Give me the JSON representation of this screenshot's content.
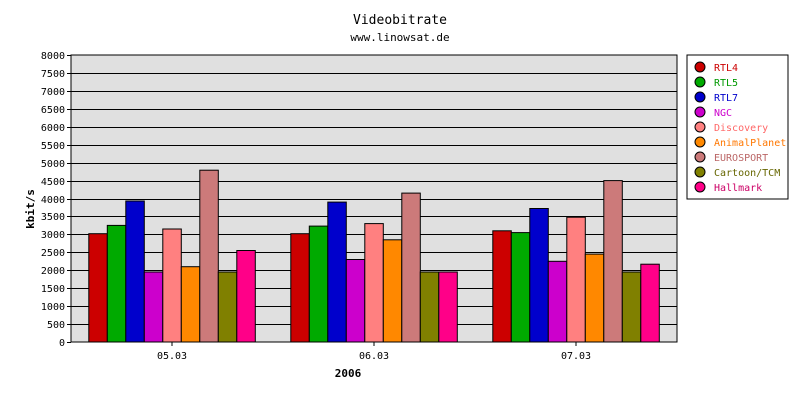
{
  "chart_data": {
    "type": "bar",
    "title": "Videobitrate",
    "subtitle": "www.linowsat.de",
    "xlabel": "2006",
    "ylabel": "kbit/s",
    "ylim": [
      0,
      8000
    ],
    "yticks": [
      0,
      500,
      1000,
      1500,
      2000,
      2500,
      3000,
      3500,
      4000,
      4500,
      5000,
      5500,
      6000,
      6500,
      7000,
      7500,
      8000
    ],
    "grid": true,
    "legend_position": "right",
    "categories": [
      "05.03",
      "06.03",
      "07.03"
    ],
    "series": [
      {
        "name": "RTL4",
        "color": "#cc0000",
        "text_color": "#cc0000",
        "values": [
          3020,
          3020,
          3100
        ]
      },
      {
        "name": "RTL5",
        "color": "#00aa00",
        "text_color": "#009900",
        "values": [
          3250,
          3230,
          3050
        ]
      },
      {
        "name": "RTL7",
        "color": "#0000cc",
        "text_color": "#0000cc",
        "values": [
          3930,
          3900,
          3720
        ]
      },
      {
        "name": "NGC",
        "color": "#cc00cc",
        "text_color": "#cc00cc",
        "values": [
          1950,
          2300,
          2250
        ]
      },
      {
        "name": "Discovery",
        "color": "#ff8080",
        "text_color": "#ff6666",
        "values": [
          3150,
          3300,
          3480
        ]
      },
      {
        "name": "AnimalPlanet",
        "color": "#ff8800",
        "text_color": "#ff7700",
        "values": [
          2100,
          2850,
          2450
        ]
      },
      {
        "name": "EUROSPORT",
        "color": "#cc7a7a",
        "text_color": "#bb6666",
        "values": [
          4790,
          4150,
          4500
        ]
      },
      {
        "name": "Cartoon/TCM",
        "color": "#808000",
        "text_color": "#666600",
        "values": [
          1950,
          1950,
          1950
        ]
      },
      {
        "name": "Hallmark",
        "color": "#ff0088",
        "text_color": "#cc0066",
        "values": [
          2550,
          1950,
          2170
        ]
      }
    ]
  }
}
